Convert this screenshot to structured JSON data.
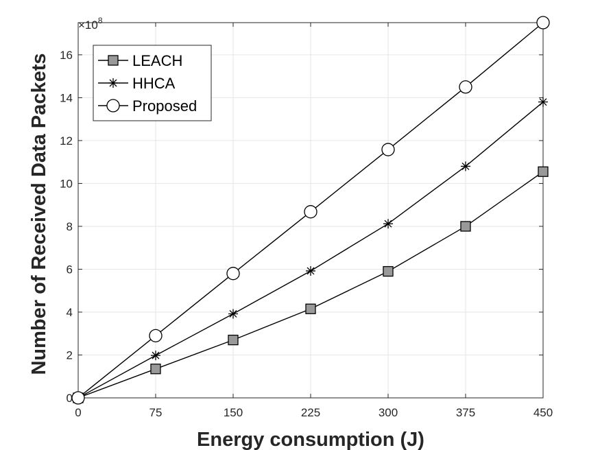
{
  "chart_data": {
    "type": "line",
    "xlabel": "Energy consumption (J)",
    "ylabel": "Number of Received Data Packets",
    "y_multiplier_label": "×10",
    "y_multiplier_exponent": "8",
    "x": [
      0,
      75,
      150,
      225,
      300,
      375,
      450
    ],
    "xlim": [
      0,
      450
    ],
    "ylim": [
      0,
      17.5
    ],
    "x_ticks": [
      "0",
      "75",
      "150",
      "225",
      "300",
      "375",
      "450"
    ],
    "y_ticks": [
      "0",
      "2",
      "4",
      "6",
      "8",
      "10",
      "12",
      "14",
      "16"
    ],
    "grid": true,
    "legend_position": "top-left",
    "series": [
      {
        "name": "LEACH",
        "marker": "square",
        "values": [
          0,
          1.35,
          2.7,
          4.15,
          5.9,
          8.0,
          10.55
        ]
      },
      {
        "name": "HHCA",
        "marker": "asterisk",
        "values": [
          0,
          1.98,
          3.92,
          5.92,
          8.12,
          10.8,
          13.8
        ]
      },
      {
        "name": "Proposed",
        "marker": "circle",
        "values": [
          0,
          2.9,
          5.8,
          8.68,
          11.58,
          14.5,
          17.5
        ]
      }
    ],
    "colors": {
      "line": "#000000",
      "square_fill": "#999999",
      "circle_fill": "#ffffff",
      "grid": "#e6e6e6",
      "axis": "#262626"
    }
  }
}
